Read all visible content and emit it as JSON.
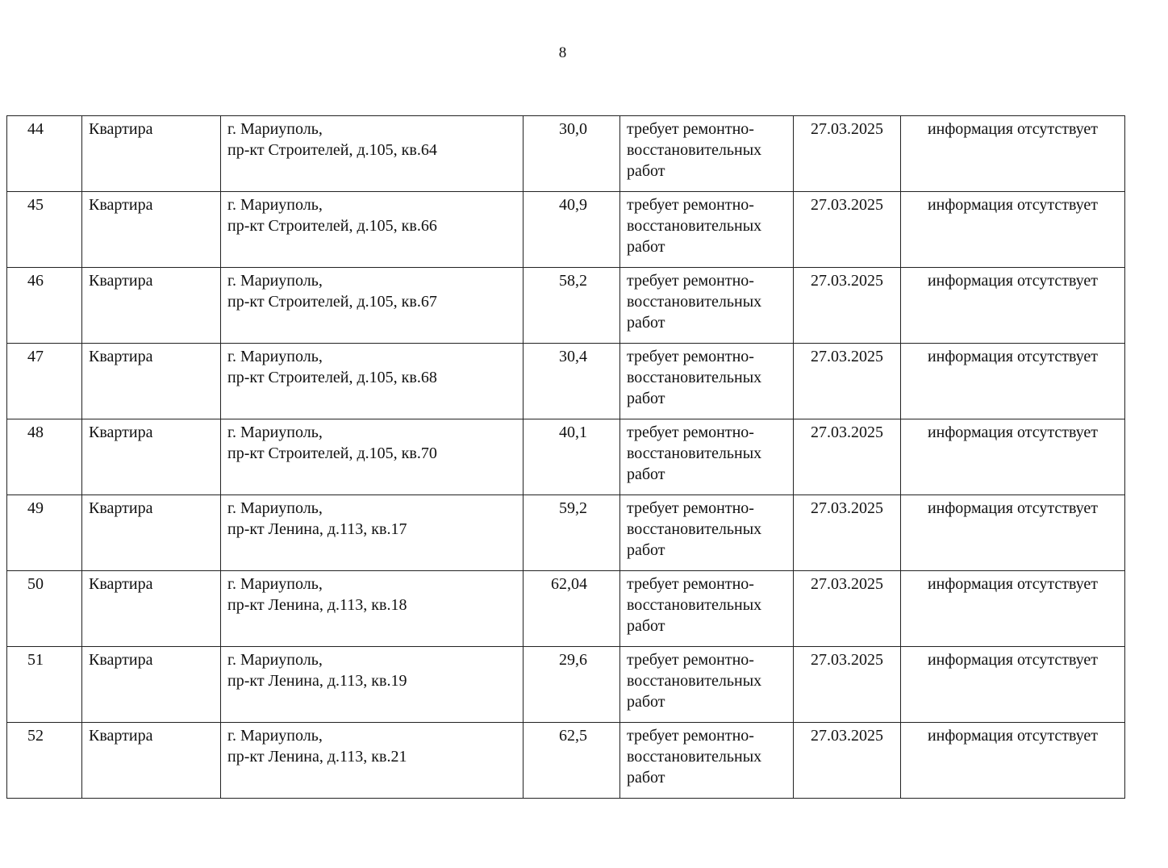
{
  "page_number": "8",
  "rows": [
    {
      "n": "44",
      "type": "Квартира",
      "city": "г. Мариуполь,",
      "address": "пр-кт Строителей, д.105, кв.64",
      "area": "30,0",
      "state": "требует ремонтно-восстановительных работ",
      "date": "27.03.2025",
      "info": "информация отсутствует"
    },
    {
      "n": "45",
      "type": "Квартира",
      "city": "г. Мариуполь,",
      "address": "пр-кт Строителей, д.105, кв.66",
      "area": "40,9",
      "state": "требует ремонтно-восстановительных работ",
      "date": "27.03.2025",
      "info": "информация отсутствует"
    },
    {
      "n": "46",
      "type": "Квартира",
      "city": "г. Мариуполь,",
      "address": "пр-кт Строителей, д.105, кв.67",
      "area": "58,2",
      "state": "требует ремонтно-восстановительных работ",
      "date": "27.03.2025",
      "info": "информация отсутствует"
    },
    {
      "n": "47",
      "type": "Квартира",
      "city": "г. Мариуполь,",
      "address": "пр-кт Строителей, д.105, кв.68",
      "area": "30,4",
      "state": "требует ремонтно-восстановительных работ",
      "date": "27.03.2025",
      "info": "информация отсутствует"
    },
    {
      "n": "48",
      "type": "Квартира",
      "city": "г. Мариуполь,",
      "address": "пр-кт Строителей, д.105, кв.70",
      "area": "40,1",
      "state": "требует ремонтно-восстановительных работ",
      "date": "27.03.2025",
      "info": "информация отсутствует"
    },
    {
      "n": "49",
      "type": "Квартира",
      "city": "г. Мариуполь,",
      "address": "пр-кт Ленина, д.113, кв.17",
      "area": "59,2",
      "state": "требует ремонтно-восстановительных работ",
      "date": "27.03.2025",
      "info": "информация отсутствует"
    },
    {
      "n": "50",
      "type": "Квартира",
      "city": "г. Мариуполь,",
      "address": "пр-кт Ленина, д.113, кв.18",
      "area": "62,04",
      "state": "требует ремонтно-восстановительных работ",
      "date": "27.03.2025",
      "info": "информация отсутствует"
    },
    {
      "n": "51",
      "type": "Квартира",
      "city": "г. Мариуполь,",
      "address": "пр-кт Ленина, д.113, кв.19",
      "area": "29,6",
      "state": "требует ремонтно-восстановительных работ",
      "date": "27.03.2025",
      "info": "информация отсутствует"
    },
    {
      "n": "52",
      "type": "Квартира",
      "city": "г. Мариуполь,",
      "address": "пр-кт Ленина, д.113, кв.21",
      "area": "62,5",
      "state": "требует ремонтно-восстановительных работ",
      "date": "27.03.2025",
      "info": "информация отсутствует"
    }
  ]
}
